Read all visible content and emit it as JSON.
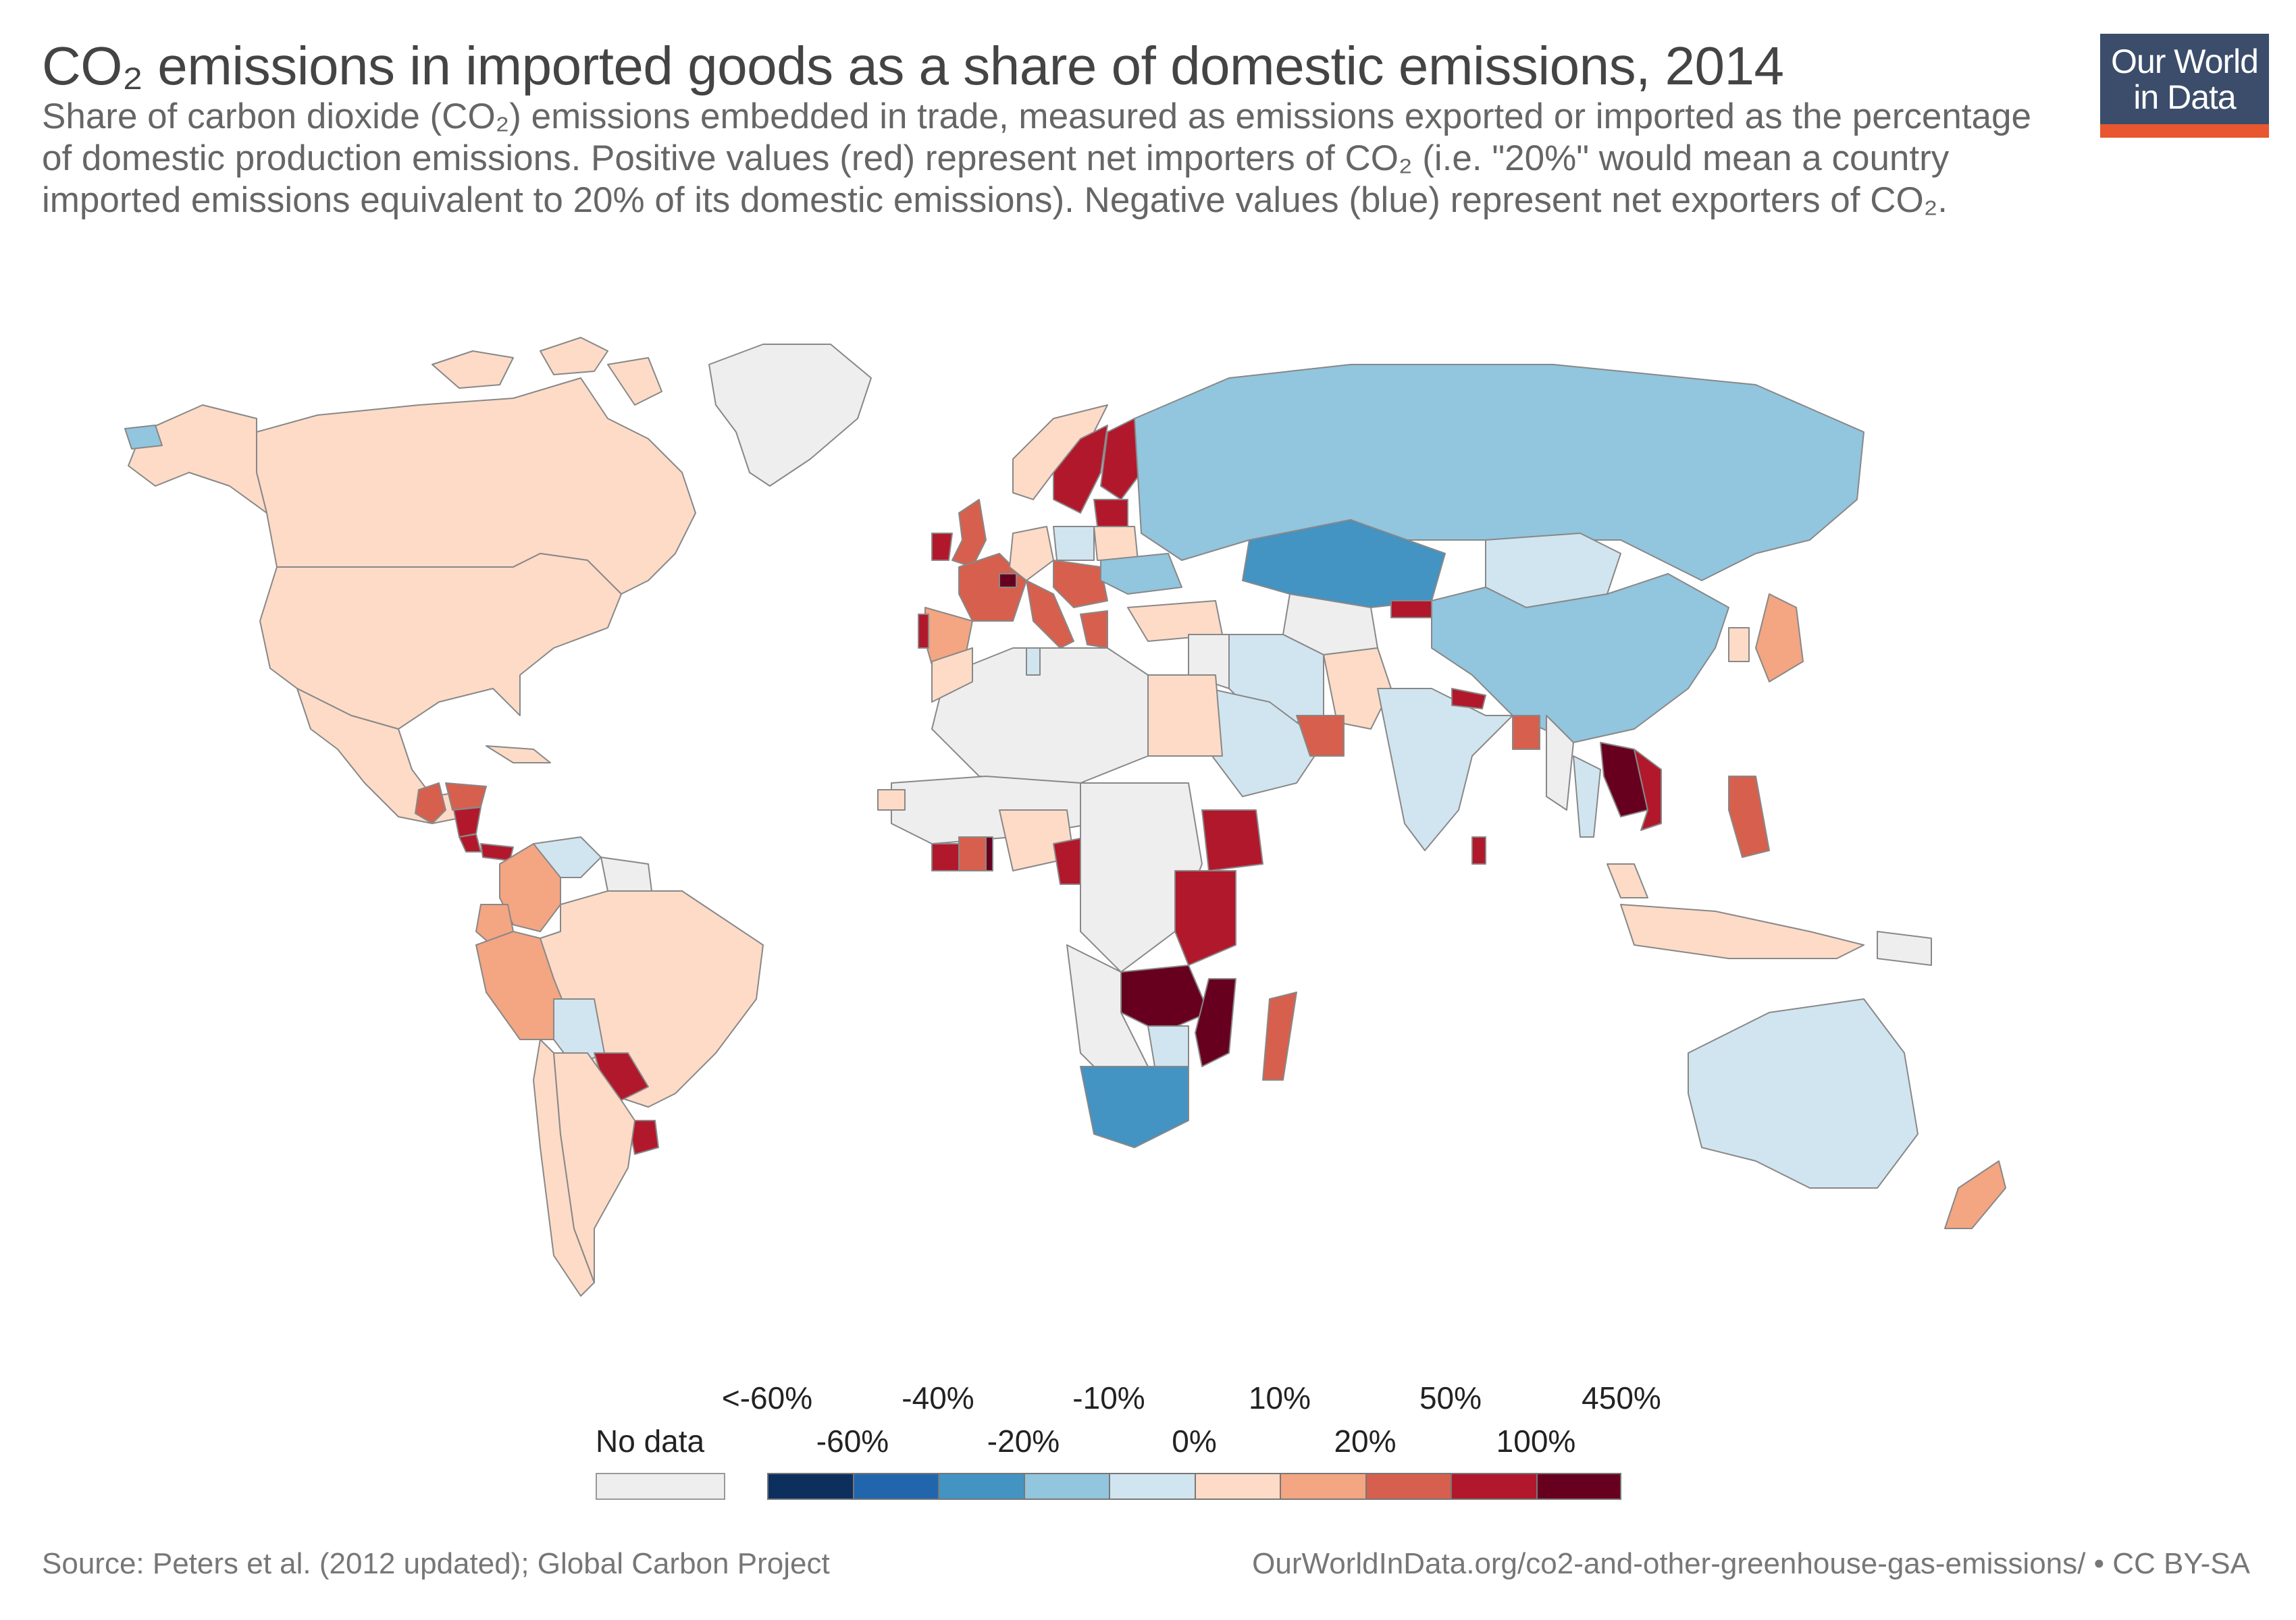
{
  "header": {
    "title": "CO₂ emissions in imported goods as a share of domestic emissions, 2014",
    "subtitle": "Share of carbon dioxide (CO₂) emissions embedded in trade, measured as emissions exported or imported as the percentage of domestic production emissions. Positive values (red) represent net importers of CO₂ (i.e. \"20%\" would mean a country imported emissions equivalent to 20% of its domestic emissions). Negative values (blue) represent net exporters of CO₂."
  },
  "logo": {
    "line1": "Our World",
    "line2": "in Data",
    "bg_color": "#3b4d6b",
    "accent_color": "#e8572f"
  },
  "legend": {
    "no_data_label": "No data",
    "no_data_color": "#eeeeee",
    "top_labels": [
      "<-60%",
      "-40%",
      "-10%",
      "10%",
      "50%",
      "450%"
    ],
    "bottom_labels": [
      "-60%",
      "-20%",
      "0%",
      "20%",
      "100%"
    ],
    "bins": [
      {
        "color": "#0d2f5e"
      },
      {
        "color": "#2166ac"
      },
      {
        "color": "#4393c3"
      },
      {
        "color": "#92c5de"
      },
      {
        "color": "#d1e5f0"
      },
      {
        "color": "#fddbc7"
      },
      {
        "color": "#f4a582"
      },
      {
        "color": "#d6604d"
      },
      {
        "color": "#b2182b"
      },
      {
        "color": "#67001f"
      }
    ]
  },
  "countries": [
    {
      "name": "Canada",
      "color": "#fddbc7"
    },
    {
      "name": "United States",
      "color": "#fddbc7"
    },
    {
      "name": "Alaska",
      "color": "#fddbc7"
    },
    {
      "name": "Greenland",
      "color": "#eeeeee"
    },
    {
      "name": "Mexico",
      "color": "#fddbc7"
    },
    {
      "name": "Guatemala",
      "color": "#d6604d"
    },
    {
      "name": "Honduras",
      "color": "#d6604d"
    },
    {
      "name": "Nicaragua",
      "color": "#b2182b"
    },
    {
      "name": "Costa Rica",
      "color": "#b2182b"
    },
    {
      "name": "Panama",
      "color": "#b2182b"
    },
    {
      "name": "Cuba",
      "color": "#fddbc7"
    },
    {
      "name": "Colombia",
      "color": "#f4a582"
    },
    {
      "name": "Venezuela",
      "color": "#d1e5f0"
    },
    {
      "name": "Guyana",
      "color": "#eeeeee"
    },
    {
      "name": "Ecuador",
      "color": "#f4a582"
    },
    {
      "name": "Peru",
      "color": "#f4a582"
    },
    {
      "name": "Brazil",
      "color": "#fddbc7"
    },
    {
      "name": "Bolivia",
      "color": "#d1e5f0"
    },
    {
      "name": "Paraguay",
      "color": "#b2182b"
    },
    {
      "name": "Uruguay",
      "color": "#b2182b"
    },
    {
      "name": "Chile",
      "color": "#fddbc7"
    },
    {
      "name": "Argentina",
      "color": "#fddbc7"
    },
    {
      "name": "Iceland",
      "color": "#92c5de"
    },
    {
      "name": "Norway",
      "color": "#fddbc7"
    },
    {
      "name": "Sweden",
      "color": "#b2182b"
    },
    {
      "name": "Finland",
      "color": "#b2182b"
    },
    {
      "name": "United Kingdom",
      "color": "#d6604d"
    },
    {
      "name": "Ireland",
      "color": "#b2182b"
    },
    {
      "name": "France",
      "color": "#d6604d"
    },
    {
      "name": "Spain",
      "color": "#f4a582"
    },
    {
      "name": "Portugal",
      "color": "#b2182b"
    },
    {
      "name": "Germany",
      "color": "#fddbc7"
    },
    {
      "name": "Poland",
      "color": "#d1e5f0"
    },
    {
      "name": "Baltics",
      "color": "#b2182b"
    },
    {
      "name": "Belarus",
      "color": "#fddbc7"
    },
    {
      "name": "Switzerland",
      "color": "#67001f"
    },
    {
      "name": "Italy",
      "color": "#d6604d"
    },
    {
      "name": "Austria / Balkans",
      "color": "#d6604d"
    },
    {
      "name": "Ukraine",
      "color": "#92c5de"
    },
    {
      "name": "Greece",
      "color": "#d6604d"
    },
    {
      "name": "Turkey",
      "color": "#fddbc7"
    },
    {
      "name": "Russia",
      "color": "#92c5de"
    },
    {
      "name": "Kazakhstan",
      "color": "#4393c3"
    },
    {
      "name": "Mongolia",
      "color": "#d1e5f0"
    },
    {
      "name": "China",
      "color": "#92c5de"
    },
    {
      "name": "Kyrgyzstan",
      "color": "#b2182b"
    },
    {
      "name": "Central Asia",
      "color": "#eeeeee"
    },
    {
      "name": "Iran",
      "color": "#d1e5f0"
    },
    {
      "name": "Pakistan",
      "color": "#fddbc7"
    },
    {
      "name": "India",
      "color": "#d1e5f0"
    },
    {
      "name": "Nepal",
      "color": "#b2182b"
    },
    {
      "name": "Bangladesh",
      "color": "#d6604d"
    },
    {
      "name": "Sri Lanka",
      "color": "#b2182b"
    },
    {
      "name": "Myanmar",
      "color": "#eeeeee"
    },
    {
      "name": "Thailand",
      "color": "#d1e5f0"
    },
    {
      "name": "Laos / Cambodia",
      "color": "#67001f"
    },
    {
      "name": "Vietnam",
      "color": "#b2182b"
    },
    {
      "name": "Malaysia",
      "color": "#fddbc7"
    },
    {
      "name": "Indonesia",
      "color": "#fddbc7"
    },
    {
      "name": "Philippines",
      "color": "#d6604d"
    },
    {
      "name": "Japan",
      "color": "#f4a582"
    },
    {
      "name": "South Korea",
      "color": "#fddbc7"
    },
    {
      "name": "Papua New Guinea",
      "color": "#eeeeee"
    },
    {
      "name": "Australia",
      "color": "#d1e5f0"
    },
    {
      "name": "New Zealand",
      "color": "#f4a582"
    },
    {
      "name": "Saudi Arabia",
      "color": "#d1e5f0"
    },
    {
      "name": "Iraq / Syria",
      "color": "#eeeeee"
    },
    {
      "name": "UAE / Oman",
      "color": "#d6604d"
    },
    {
      "name": "Israel",
      "color": "#d6604d"
    },
    {
      "name": "North Africa",
      "color": "#eeeeee"
    },
    {
      "name": "Morocco",
      "color": "#fddbc7"
    },
    {
      "name": "Egypt",
      "color": "#fddbc7"
    },
    {
      "name": "Tunisia",
      "color": "#d1e5f0"
    },
    {
      "name": "West Africa",
      "color": "#eeeeee"
    },
    {
      "name": "Senegal",
      "color": "#fddbc7"
    },
    {
      "name": "Ivory Coast",
      "color": "#b2182b"
    },
    {
      "name": "Ghana",
      "color": "#d6604d"
    },
    {
      "name": "Togo",
      "color": "#67001f"
    },
    {
      "name": "Nigeria",
      "color": "#fddbc7"
    },
    {
      "name": "Cameroon",
      "color": "#b2182b"
    },
    {
      "name": "Central Africa",
      "color": "#eeeeee"
    },
    {
      "name": "Ethiopia",
      "color": "#b2182b"
    },
    {
      "name": "Kenya / Tanzania",
      "color": "#b2182b"
    },
    {
      "name": "Zambia / Zimbabwe",
      "color": "#67001f"
    },
    {
      "name": "Mozambique",
      "color": "#67001f"
    },
    {
      "name": "Botswana",
      "color": "#d1e5f0"
    },
    {
      "name": "Namibia / Angola",
      "color": "#eeeeee"
    },
    {
      "name": "South Africa",
      "color": "#4393c3"
    },
    {
      "name": "Madagascar",
      "color": "#d6604d"
    }
  ],
  "footer": {
    "source": "Source: Peters et al. (2012 updated); Global Carbon Project",
    "url": "OurWorldInData.org/co2-and-other-greenhouse-gas-emissions/ • CC BY-SA"
  }
}
